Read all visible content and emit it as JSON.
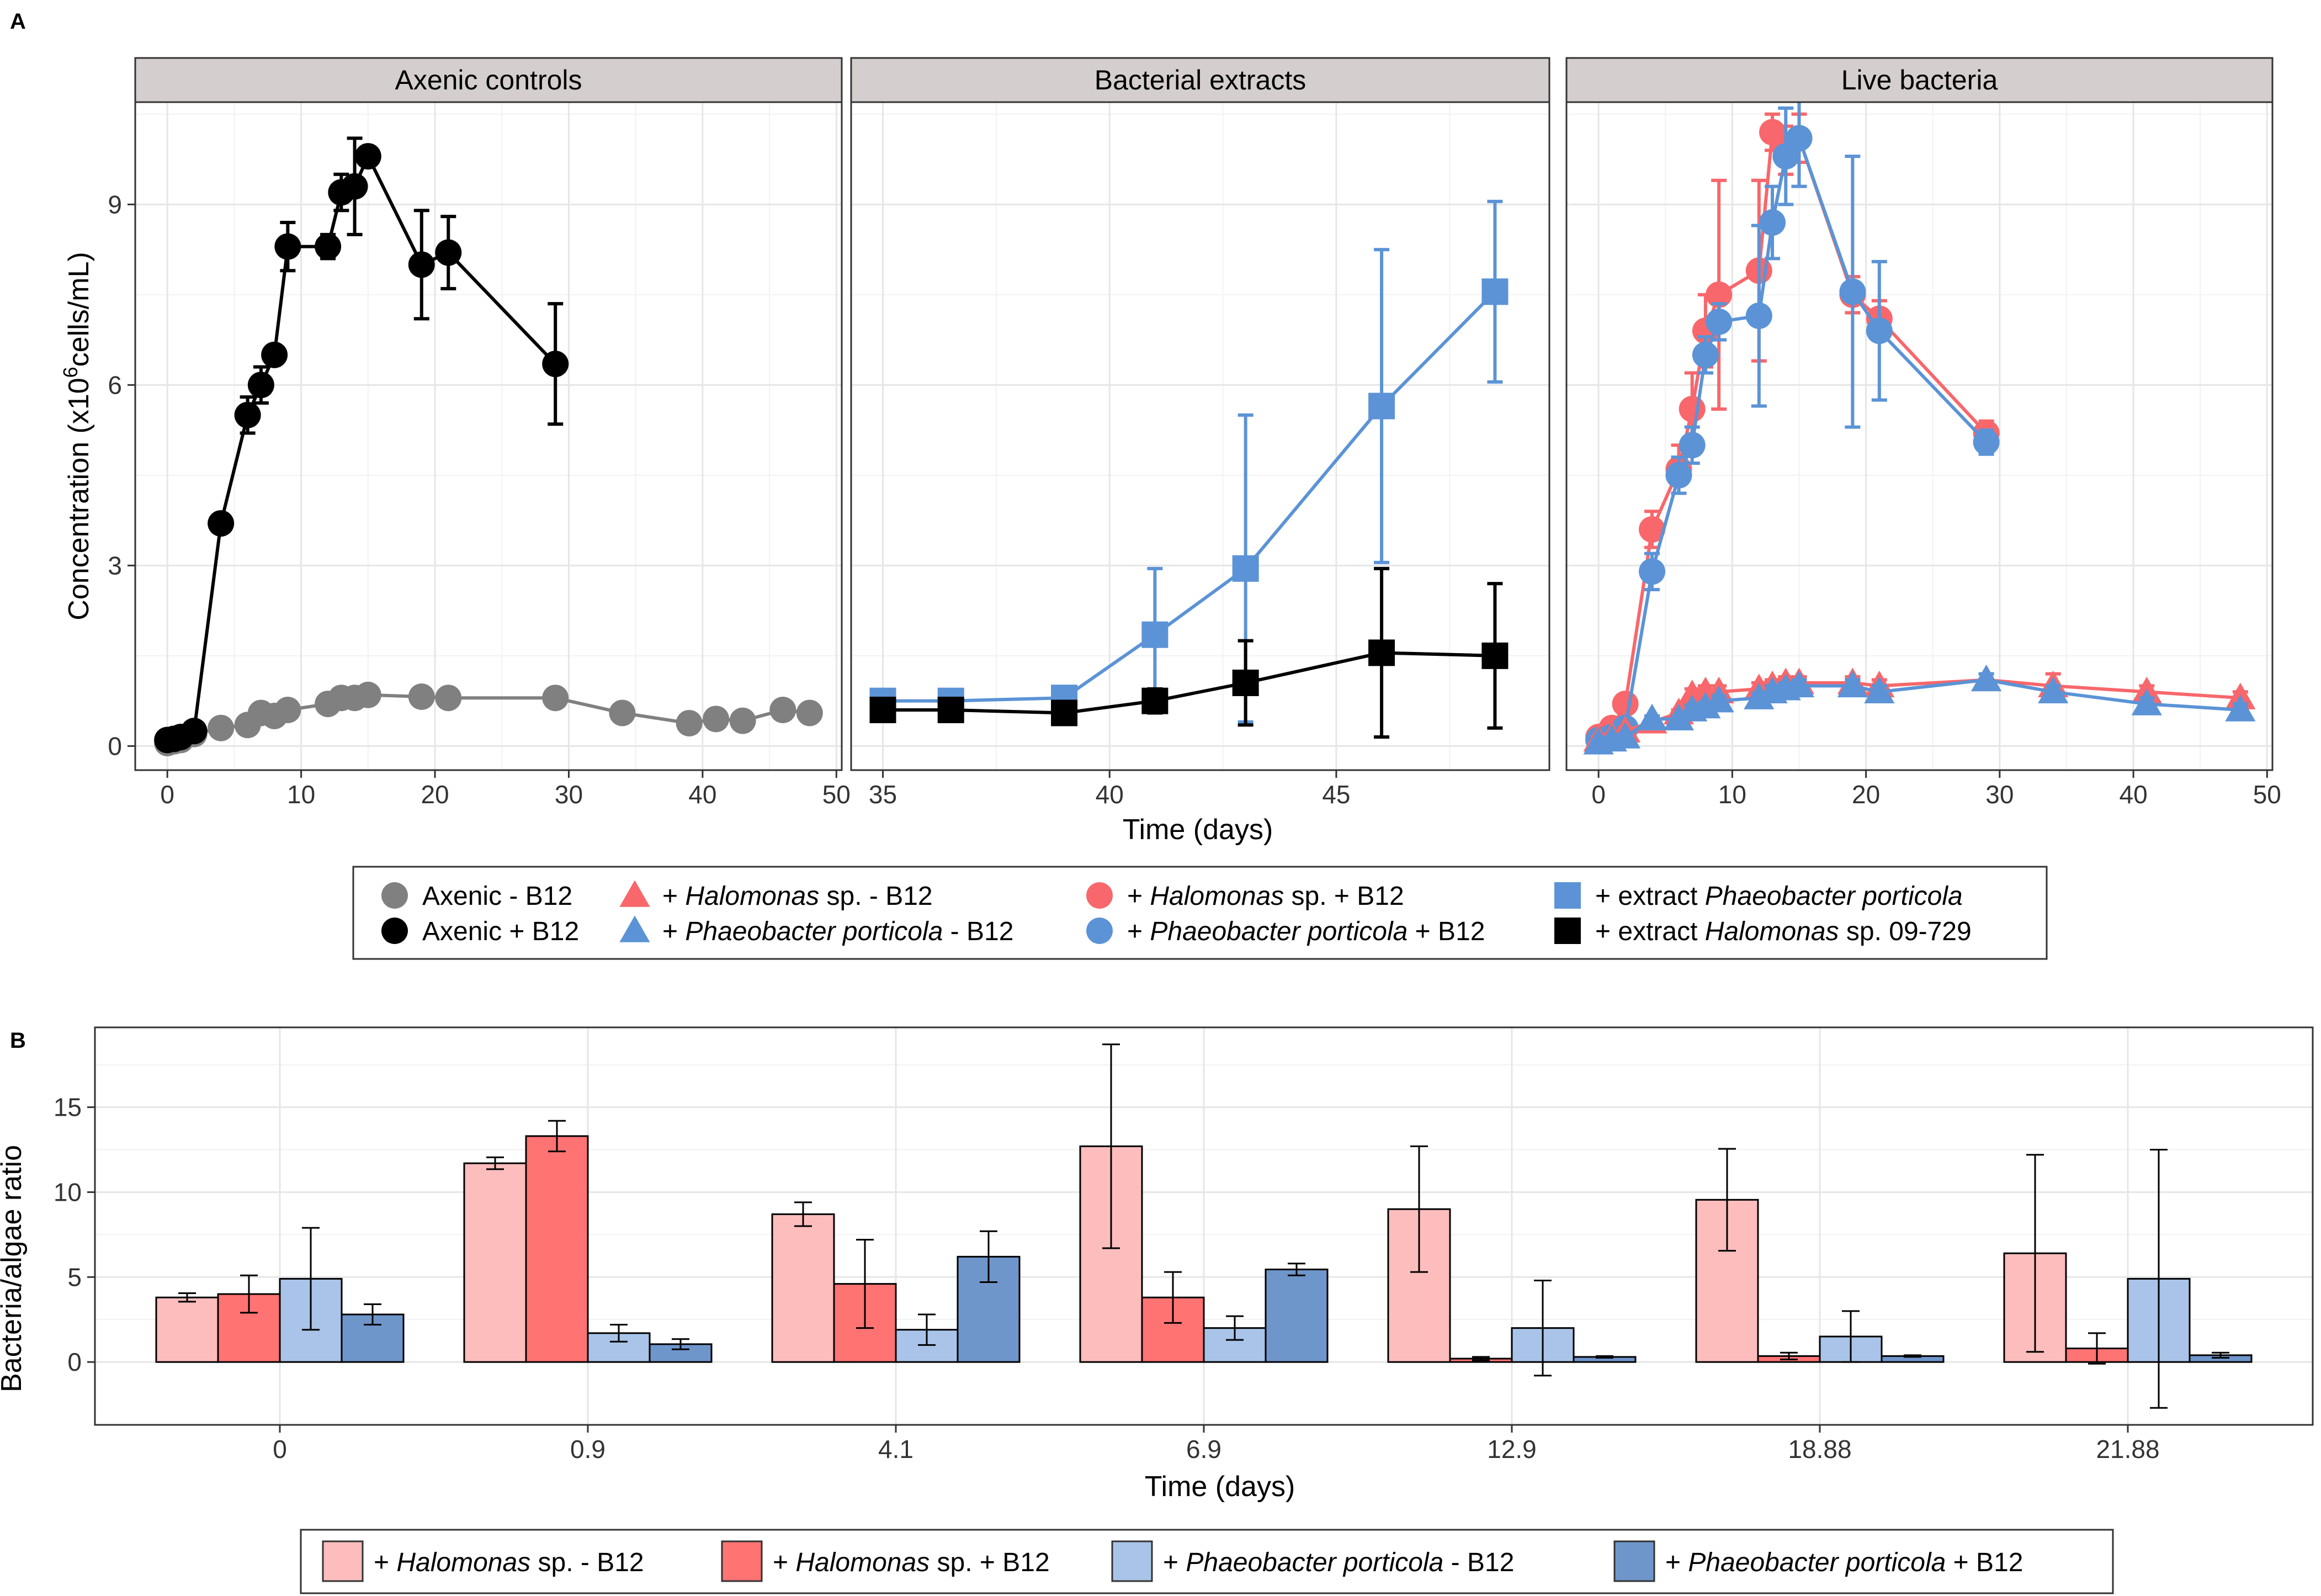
{
  "panel_labels": {
    "a": "A",
    "b": "B"
  },
  "colors": {
    "axenic_minus": "#808080",
    "axenic_plus": "#000000",
    "halomonas": "#f8676b",
    "phaeobacter": "#5b93d6",
    "bar_hal_minus": "#fdbdbd",
    "bar_hal_plus": "#ff7373",
    "bar_pp_minus": "#a9c4e8",
    "bar_pp_plus": "#6e96cb"
  },
  "legend_a": [
    {
      "key": "axenic_minus",
      "shape": "circle",
      "color": "#808080",
      "pre": "Axenic - B12",
      "it": "",
      "post": ""
    },
    {
      "key": "axenic_plus",
      "shape": "circle",
      "color": "#000000",
      "pre": "Axenic + B12",
      "it": "",
      "post": ""
    },
    {
      "key": "hal_minus",
      "shape": "triangle",
      "color": "#f8676b",
      "pre": "+ ",
      "it": "Halomonas",
      "post": " sp. - B12"
    },
    {
      "key": "pp_minus",
      "shape": "triangle",
      "color": "#5b93d6",
      "pre": "+ ",
      "it": "Phaeobacter porticola",
      "post": " - B12"
    },
    {
      "key": "hal_plus",
      "shape": "circle",
      "color": "#f8676b",
      "pre": "+ ",
      "it": "Halomonas",
      "post": " sp. + B12"
    },
    {
      "key": "pp_plus",
      "shape": "circle",
      "color": "#5b93d6",
      "pre": "+ ",
      "it": "Phaeobacter porticola",
      "post": " + B12"
    },
    {
      "key": "extract_pp",
      "shape": "square",
      "color": "#5b93d6",
      "pre": "+ extract ",
      "it": "Phaeobacter porticola",
      "post": ""
    },
    {
      "key": "extract_hal",
      "shape": "square",
      "color": "#000000",
      "pre": "+ extract ",
      "it": "Halomonas",
      "post": " sp. 09-729"
    }
  ],
  "legend_b": [
    {
      "color": "#fdbdbd",
      "pre": "+ ",
      "it": "Halomonas",
      "post": " sp. - B12"
    },
    {
      "color": "#ff7373",
      "pre": "+ ",
      "it": "Halomonas",
      "post": " sp. + B12"
    },
    {
      "color": "#a9c4e8",
      "pre": "+ ",
      "it": "Phaeobacter porticola",
      "post": " - B12"
    },
    {
      "color": "#6e96cb",
      "pre": "+ ",
      "it": "Phaeobacter porticola",
      "post": " + B12"
    }
  ],
  "chart_data": [
    {
      "id": "A",
      "type": "line",
      "ylabel_main": "Concentration  (x10",
      "ylabel_sup": "6",
      "ylabel_end": "cells/mL)",
      "xlabel": "Time (days)",
      "ylim": [
        -0.4,
        10.7
      ],
      "yticks": [
        0,
        3,
        6,
        9
      ],
      "facets": [
        {
          "title": "Axenic controls",
          "xlim": [
            -2.4,
            50.4
          ],
          "xticks": [
            0,
            10,
            20,
            30,
            40,
            50
          ],
          "series": [
            {
              "name": "Axenic - B12",
              "shape": "circle",
              "color": "#808080",
              "x": [
                0,
                0.5,
                1,
                2,
                4,
                6,
                7,
                8,
                9,
                12,
                13,
                14,
                15,
                19,
                21,
                29,
                34,
                39,
                41,
                43,
                46,
                48
              ],
              "y": [
                0.05,
                0.08,
                0.1,
                0.2,
                0.3,
                0.35,
                0.55,
                0.5,
                0.6,
                0.7,
                0.8,
                0.8,
                0.85,
                0.82,
                0.8,
                0.8,
                0.55,
                0.38,
                0.45,
                0.42,
                0.6,
                0.55
              ],
              "err": [
                0.05,
                0.05,
                0.05,
                0.05,
                0.05,
                0.05,
                0.08,
                0.08,
                0.08,
                0.1,
                0.1,
                0.1,
                0.08,
                0.08,
                0.08,
                0.08,
                0.05,
                0.05,
                0.05,
                0.05,
                0.05,
                0.05
              ]
            },
            {
              "name": "Axenic + B12",
              "shape": "circle",
              "color": "#000000",
              "x": [
                0,
                0.5,
                1,
                2,
                4,
                6,
                7,
                8,
                9,
                12,
                13,
                14,
                15,
                19,
                21,
                29
              ],
              "y": [
                0.1,
                0.12,
                0.15,
                0.25,
                3.7,
                5.5,
                6.0,
                6.5,
                8.3,
                8.3,
                9.2,
                9.3,
                9.8,
                8.0,
                8.2,
                6.35
              ],
              "err": [
                0.05,
                0.05,
                0.05,
                0.08,
                0.15,
                0.3,
                0.3,
                0.15,
                0.4,
                0.2,
                0.3,
                0.8,
                0.1,
                0.9,
                0.6,
                1.0
              ]
            }
          ]
        },
        {
          "title": "Bacterial extracts",
          "xlim": [
            34.3,
            49.7
          ],
          "xticks": [
            35,
            40,
            45
          ],
          "series": [
            {
              "name": "+ extract Phaeobacter porticola",
              "shape": "square",
              "color": "#5b93d6",
              "x": [
                35,
                36.5,
                39,
                41,
                43,
                46,
                48.5
              ],
              "y": [
                0.75,
                0.75,
                0.8,
                1.85,
                2.95,
                5.65,
                7.55
              ],
              "err": [
                0.1,
                0.1,
                0.1,
                1.1,
                2.55,
                2.6,
                1.5
              ]
            },
            {
              "name": "+ extract Halomonas sp. 09-729",
              "shape": "square",
              "color": "#000000",
              "x": [
                35,
                36.5,
                39,
                41,
                43,
                46,
                48.5
              ],
              "y": [
                0.6,
                0.6,
                0.55,
                0.75,
                1.05,
                1.55,
                1.5
              ],
              "err": [
                0.1,
                0.1,
                0.1,
                0.2,
                0.7,
                1.4,
                1.2
              ]
            }
          ]
        },
        {
          "title": "Live bacteria",
          "xlim": [
            -2.4,
            50.4
          ],
          "xticks": [
            0,
            10,
            20,
            30,
            40,
            50
          ],
          "series": [
            {
              "name": "+ Halomonas sp. + B12",
              "shape": "circle",
              "color": "#f8676b",
              "x": [
                0,
                1,
                2,
                4,
                6,
                7,
                8,
                9,
                12,
                13,
                14,
                15,
                19,
                21,
                29
              ],
              "y": [
                0.15,
                0.3,
                0.7,
                3.6,
                4.6,
                5.6,
                6.9,
                7.5,
                7.9,
                10.2,
                9.9,
                10.1,
                7.5,
                7.1,
                5.2
              ],
              "err": [
                0.05,
                0.05,
                0.1,
                0.3,
                0.4,
                0.6,
                0.6,
                1.9,
                1.5,
                0.3,
                0.4,
                0.4,
                0.3,
                0.3,
                0.2
              ]
            },
            {
              "name": "+ Phaeobacter porticola + B12",
              "shape": "circle",
              "color": "#5b93d6",
              "x": [
                0,
                1,
                2,
                4,
                6,
                7,
                8,
                9,
                12,
                13,
                14,
                15,
                19,
                21,
                29
              ],
              "y": [
                0.1,
                0.15,
                0.3,
                2.9,
                4.5,
                5.0,
                6.5,
                7.05,
                7.15,
                8.7,
                9.8,
                10.1,
                7.55,
                6.9,
                5.05
              ],
              "err": [
                0.05,
                0.05,
                0.1,
                0.3,
                0.3,
                0.3,
                0.3,
                0.3,
                1.5,
                0.6,
                0.8,
                0.8,
                2.25,
                1.15,
                0.2
              ]
            },
            {
              "name": "+ Halomonas sp. - B12",
              "shape": "triangle",
              "color": "#f8676b",
              "x": [
                0,
                1,
                2,
                4,
                6,
                7,
                8,
                9,
                12,
                13,
                14,
                15,
                19,
                21,
                29,
                34,
                41,
                48
              ],
              "y": [
                0.1,
                0.15,
                0.25,
                0.4,
                0.55,
                0.85,
                0.9,
                0.9,
                0.95,
                1.0,
                1.05,
                1.05,
                1.05,
                1.0,
                1.1,
                1.0,
                0.9,
                0.8
              ],
              "err": [
                0.05,
                0.05,
                0.05,
                0.05,
                0.05,
                0.1,
                0.1,
                0.1,
                0.1,
                0.1,
                0.1,
                0.1,
                0.1,
                0.1,
                0.1,
                0.2,
                0.1,
                0.1
              ]
            },
            {
              "name": "+ Phaeobacter porticola - B12",
              "shape": "triangle",
              "color": "#5b93d6",
              "x": [
                0,
                1,
                2,
                4,
                6,
                7,
                8,
                9,
                12,
                13,
                14,
                15,
                19,
                21,
                29,
                34,
                41,
                48
              ],
              "y": [
                0.05,
                0.1,
                0.15,
                0.45,
                0.45,
                0.6,
                0.65,
                0.75,
                0.8,
                0.9,
                0.95,
                1.0,
                1.0,
                0.9,
                1.1,
                0.9,
                0.7,
                0.6
              ],
              "err": [
                0.05,
                0.05,
                0.05,
                0.05,
                0.05,
                0.08,
                0.08,
                0.08,
                0.08,
                0.1,
                0.1,
                0.1,
                0.1,
                0.1,
                0.1,
                0.1,
                0.1,
                0.1
              ]
            }
          ]
        }
      ]
    },
    {
      "id": "B",
      "type": "bar",
      "title": "",
      "xlabel": "Time (days)",
      "ylabel": "Bacteria/algae ratio",
      "ylim": [
        -3.7,
        19.7
      ],
      "yticks": [
        0,
        5,
        10,
        15
      ],
      "categories": [
        "0",
        "0.9",
        "4.1",
        "6.9",
        "12.9",
        "18.88",
        "21.88"
      ],
      "series": [
        {
          "name": "+ Halomonas sp. - B12",
          "color": "#fdbdbd",
          "values": [
            3.8,
            11.7,
            8.7,
            12.7,
            9.0,
            9.55,
            6.4
          ],
          "err": [
            0.25,
            0.35,
            0.7,
            6.0,
            3.7,
            3.0,
            5.8
          ]
        },
        {
          "name": "+ Halomonas sp. + B12",
          "color": "#ff7373",
          "values": [
            4.0,
            13.3,
            4.6,
            3.8,
            0.2,
            0.35,
            0.8
          ],
          "err": [
            1.1,
            0.9,
            2.6,
            1.5,
            0.1,
            0.2,
            0.9
          ]
        },
        {
          "name": "+ Phaeobacter porticola - B12",
          "color": "#a9c4e8",
          "values": [
            4.9,
            1.7,
            1.9,
            2.0,
            2.0,
            1.5,
            4.9
          ],
          "err": [
            3.0,
            0.5,
            0.9,
            0.7,
            2.8,
            1.5,
            7.6
          ]
        },
        {
          "name": "+ Phaeobacter porticola + B12",
          "color": "#6e96cb",
          "values": [
            2.8,
            1.05,
            6.2,
            5.45,
            0.3,
            0.35,
            0.4
          ],
          "err": [
            0.6,
            0.3,
            1.5,
            0.35,
            0.05,
            0.05,
            0.15
          ]
        }
      ]
    }
  ]
}
